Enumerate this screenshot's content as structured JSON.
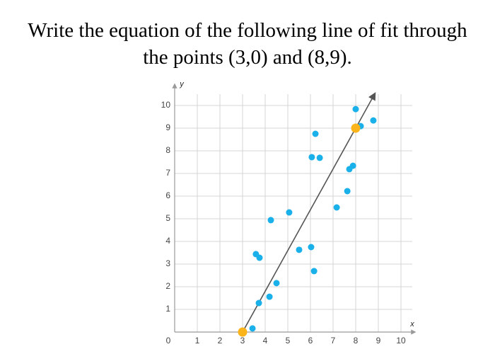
{
  "chart_data": {
    "type": "scatter",
    "title": [
      "Write the equation of the following line of fit through",
      "the points (3,0) and (8,9)."
    ],
    "x_label": "x",
    "y_label": "y",
    "xlim": [
      0,
      10.5
    ],
    "ylim": [
      0,
      10.5
    ],
    "xticks": [
      0,
      1,
      2,
      3,
      4,
      5,
      6,
      7,
      8,
      9,
      10
    ],
    "yticks": [
      1,
      2,
      3,
      4,
      5,
      6,
      7,
      8,
      9,
      10
    ],
    "grid": true,
    "series": [
      {
        "name": "data",
        "color": "#1ab0ea",
        "x": [
          3.44,
          3.72,
          4.19,
          4.5,
          3.59,
          3.75,
          4.25,
          5.06,
          5.5,
          6.03,
          6.16,
          6.22,
          6.06,
          6.41,
          7.16,
          7.63,
          7.72,
          7.88,
          8.0,
          8.22,
          8.78
        ],
        "values": [
          0.16,
          1.28,
          1.56,
          2.16,
          3.44,
          3.28,
          4.94,
          5.28,
          3.63,
          3.75,
          2.69,
          8.75,
          7.72,
          7.69,
          5.5,
          6.22,
          7.19,
          7.34,
          9.84,
          9.09,
          9.34
        ]
      },
      {
        "name": "given",
        "color": "#fbb41a",
        "x": [
          3,
          8
        ],
        "values": [
          0,
          9
        ]
      }
    ],
    "fit_line": {
      "color": "#555555",
      "x": [
        3,
        8.85
      ],
      "values": [
        0,
        10.53
      ]
    }
  }
}
